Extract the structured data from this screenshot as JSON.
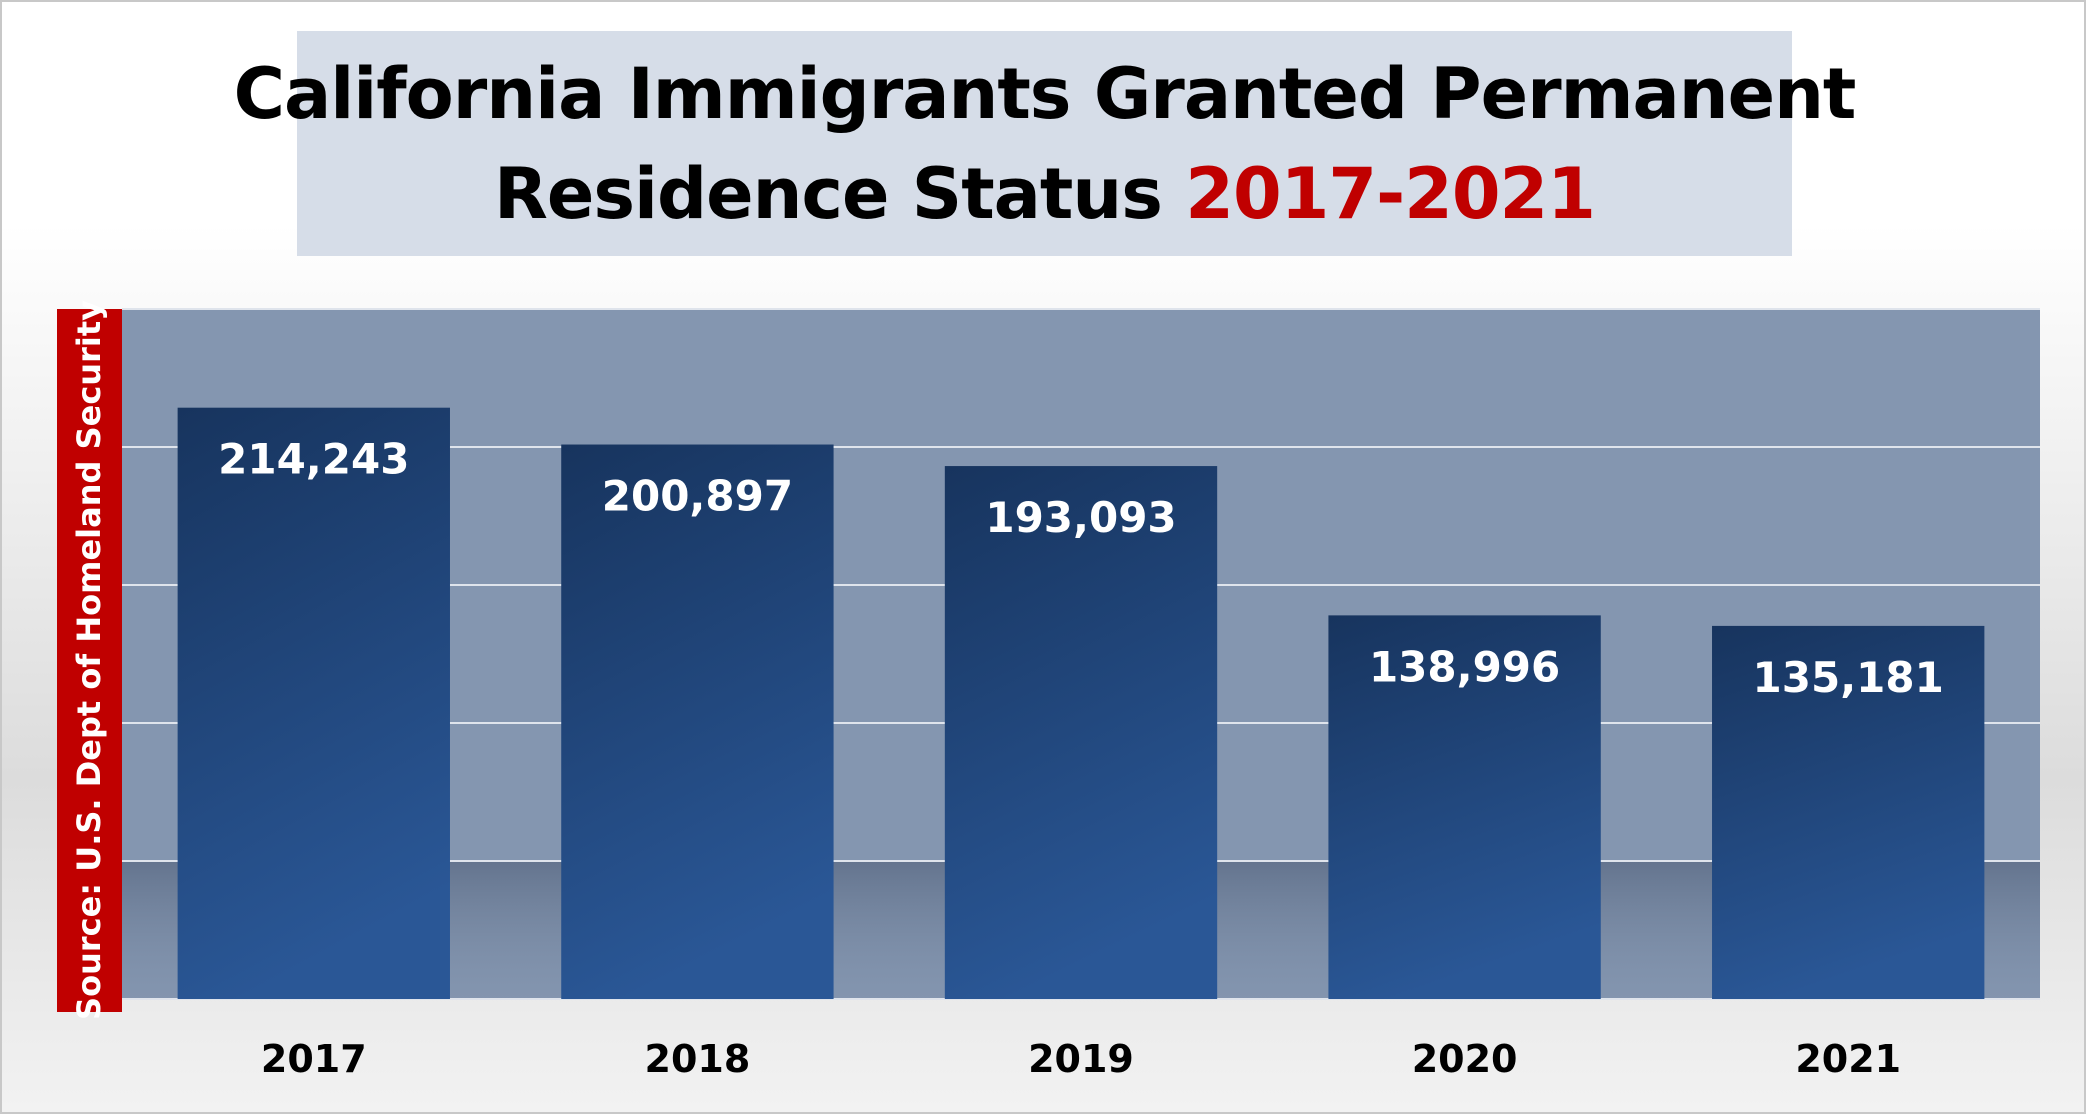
{
  "title": {
    "line1": "California Immigrants Granted Permanent",
    "line2_prefix": "Residence Status",
    "line2_accent": "2017-2021"
  },
  "source": "Source: U.S. Dept of Homeland Security",
  "colors": {
    "plot_background": "#8496b0",
    "bar_top": "#17345e",
    "bar_bottom": "#2a5796",
    "title_accent": "#c00000",
    "source_bar": "#c00000",
    "title_box": "#d6dde8"
  },
  "chart_data": {
    "type": "bar",
    "categories": [
      "2017",
      "2018",
      "2019",
      "2020",
      "2021"
    ],
    "values": [
      214243,
      200897,
      193093,
      138996,
      135181
    ],
    "data_labels": [
      "214,243",
      "200,897",
      "193,093",
      "138,996",
      "135,181"
    ],
    "title": "California Immigrants Granted Permanent Residence Status 2017-2021",
    "xlabel": "",
    "ylabel": "",
    "ylim": [
      0,
      250000
    ],
    "grid": true,
    "legend": "none"
  }
}
